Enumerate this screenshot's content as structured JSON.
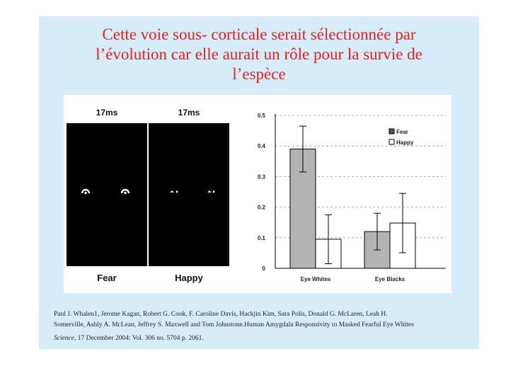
{
  "title": {
    "line1": "Cette voie sous- corticale serait sélectionnée par",
    "line2": "l’évolution car elle aurait un rôle pour la survie de",
    "line3": "l’espèce"
  },
  "stimuli": {
    "left": {
      "duration": "17ms",
      "label": "Fear"
    },
    "right": {
      "duration": "17ms",
      "label": "Happy"
    }
  },
  "chart_data": {
    "type": "bar",
    "categories": [
      "Eye Whites",
      "Eye Blacks"
    ],
    "series": [
      {
        "name": "Fear",
        "values": [
          0.39,
          0.12
        ],
        "error": [
          0.075,
          0.06
        ],
        "color": "#b3b3b3"
      },
      {
        "name": "Happy",
        "values": [
          0.095,
          0.148
        ],
        "error": [
          0.08,
          0.097
        ],
        "color": "#ffffff"
      }
    ],
    "yticks": [
      "0",
      "0.1",
      "0.2",
      "0.3",
      "0.4",
      "0.5"
    ],
    "ylim": [
      0,
      0.5
    ],
    "grid": "dashed horizontal",
    "legend_position": "top-right",
    "title": "",
    "xlabel": "",
    "ylabel": ""
  },
  "citation": {
    "line1": "Paul J. Whalen1, Jerome Kagan, Robert G. Cook, F. Caroline Davis, Hackjin Kim, Sara Polis, Donald G. McLaren, Leah H.",
    "line2": "Somerville, Ashly A. McLean, Jeffrey S. Maxwell and Tom Johnstone.Human Amygdala Responsivity to Masked Fearful Eye Whites",
    "journal": "Science,",
    "rest": " 17 December 2004: Vol. 306 no. 5704 p. 2061."
  }
}
